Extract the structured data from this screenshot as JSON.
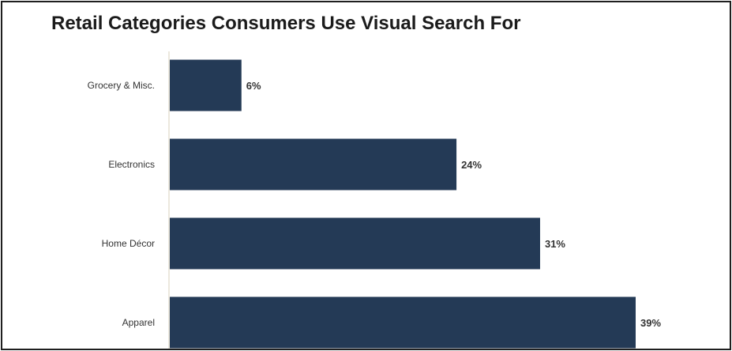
{
  "chart_data": {
    "type": "bar",
    "orientation": "horizontal",
    "title": "Retail Categories Consumers Use Visual Search For",
    "categories": [
      "Grocery & Misc.",
      "Electronics",
      "Home Décor",
      "Apparel"
    ],
    "values": [
      6,
      24,
      31,
      39
    ],
    "value_labels": [
      "6%",
      "24%",
      "31%",
      "39%"
    ],
    "unit": "%",
    "bar_color": "#243a56",
    "xlim": [
      0,
      39
    ],
    "grid": false,
    "legend": "none"
  }
}
